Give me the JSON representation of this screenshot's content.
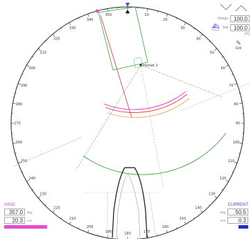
{
  "compass": {
    "labels": [
      "90",
      "100",
      "110",
      "120",
      "130",
      "140",
      "150",
      "160",
      "170",
      "180",
      "190",
      "200",
      "210",
      "220",
      "230",
      "240",
      "250",
      "260",
      "270",
      "280",
      "290",
      "300",
      "310",
      "320",
      "330",
      "340",
      "350",
      "0",
      "10",
      "20",
      "30",
      "40",
      "50",
      "60",
      "70",
      "80"
    ]
  },
  "vessel": {
    "name_label": "Hornet 2"
  },
  "settings": {
    "range_label": "Range",
    "range_value": "100.0",
    "swf_label": "Swf",
    "swf_value": "100.0",
    "unit": "[m]",
    "edit_label": "Edit"
  },
  "wind": {
    "title": "WIND",
    "direction": "357.0",
    "direction_unit": "deg",
    "speed": "20.3",
    "speed_unit": "m/s"
  },
  "current": {
    "title": "CURRENT",
    "direction": "50.5",
    "direction_unit": "deg",
    "speed": "0.3",
    "speed_unit": "m/s"
  },
  "colors": {
    "wind": "#e74bd6",
    "current": "#1d2cd3",
    "green": "#3aa43a",
    "red": "#e03030",
    "orange": "#f0a35a"
  }
}
